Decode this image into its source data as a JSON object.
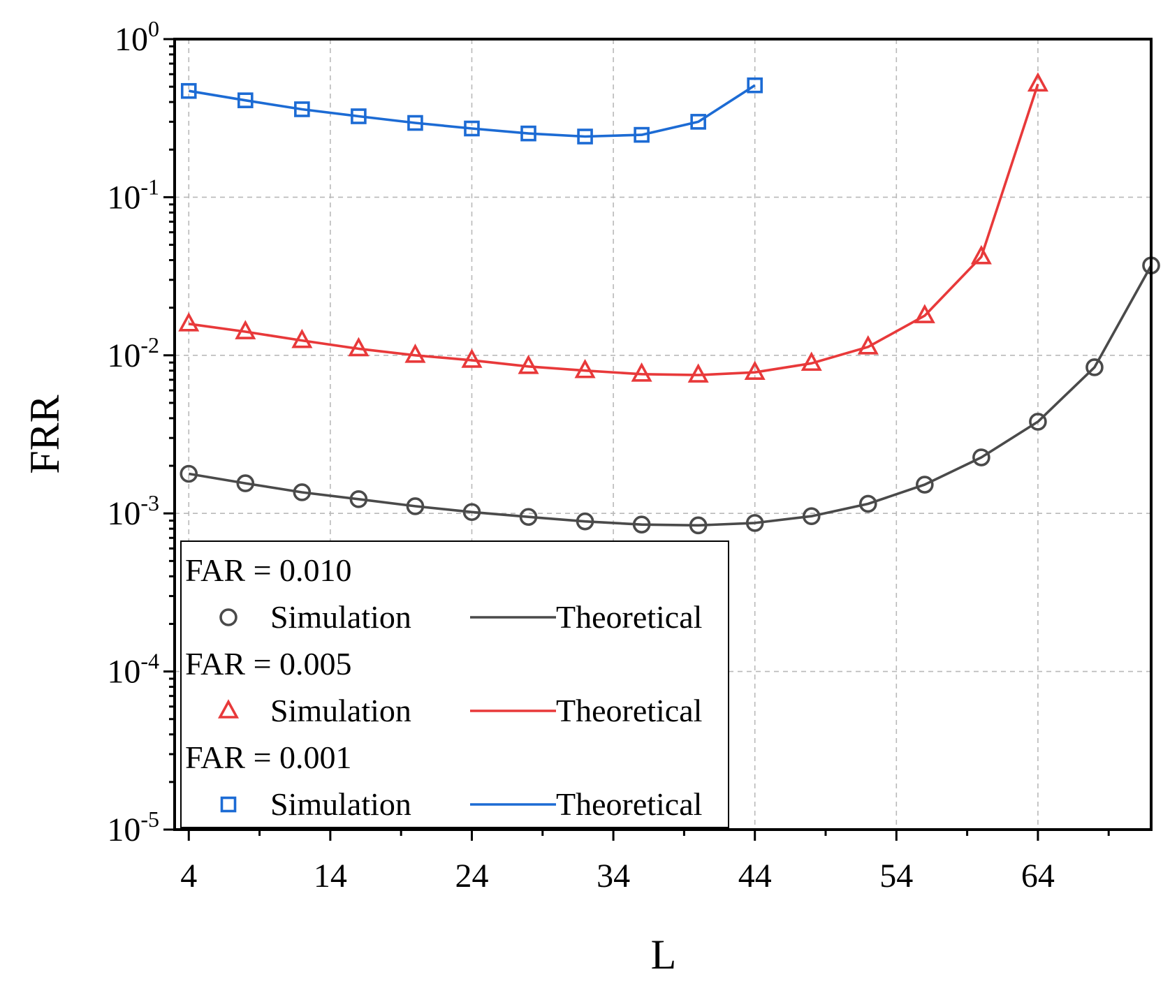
{
  "chart_data": {
    "type": "line",
    "title": "",
    "xlabel": "L",
    "ylabel": "FRR",
    "xlim": [
      3,
      72
    ],
    "ylim": [
      1e-05,
      1
    ],
    "yscale": "log",
    "grid": true,
    "x_ticks": [
      {
        "value": 4,
        "label": "4"
      },
      {
        "value": 14,
        "label": "14"
      },
      {
        "value": 24,
        "label": "24"
      },
      {
        "value": 34,
        "label": "34"
      },
      {
        "value": 44,
        "label": "44"
      },
      {
        "value": 54,
        "label": "54"
      },
      {
        "value": 64,
        "label": "64"
      }
    ],
    "x_minor_ticks": [
      9,
      19,
      29,
      39,
      49,
      59,
      69
    ],
    "y_ticks": [
      {
        "value": 1,
        "base": "10",
        "exp": "0"
      },
      {
        "value": 0.1,
        "base": "10",
        "exp": "-1"
      },
      {
        "value": 0.01,
        "base": "10",
        "exp": "-2"
      },
      {
        "value": 0.001,
        "base": "10",
        "exp": "-3"
      },
      {
        "value": 0.0001,
        "base": "10",
        "exp": "-4"
      },
      {
        "value": 1e-05,
        "base": "10",
        "exp": "-5"
      }
    ],
    "legend": {
      "position": "bottom-left",
      "groups": [
        {
          "heading": "FAR = 0.010",
          "sim_label": "Simulation",
          "theory_label": "Theoretical",
          "series": 0
        },
        {
          "heading": "FAR = 0.005",
          "sim_label": "Simulation",
          "theory_label": "Theoretical",
          "series": 1
        },
        {
          "heading": "FAR = 0.001",
          "sim_label": "Simulation",
          "theory_label": "Theoretical",
          "series": 2
        }
      ]
    },
    "series": [
      {
        "name": "FAR = 0.010",
        "color": "#4a4a4a",
        "marker": "circle",
        "x": [
          4,
          8,
          12,
          16,
          20,
          24,
          28,
          32,
          36,
          40,
          44,
          48,
          52,
          56,
          60,
          64,
          68,
          72
        ],
        "simulation": [
          0.00178,
          0.00155,
          0.00136,
          0.00123,
          0.00111,
          0.00102,
          0.00095,
          0.00089,
          0.00085,
          0.00084,
          0.00087,
          0.00096,
          0.00115,
          0.00152,
          0.00226,
          0.0038,
          0.0084,
          0.037
        ],
        "theoretical": [
          0.00178,
          0.00155,
          0.00136,
          0.00123,
          0.00111,
          0.00102,
          0.00095,
          0.00089,
          0.00085,
          0.00084,
          0.00087,
          0.00096,
          0.00115,
          0.00152,
          0.00226,
          0.0038,
          0.0084,
          0.037
        ]
      },
      {
        "name": "FAR = 0.005",
        "color": "#e8393a",
        "marker": "triangle",
        "x": [
          4,
          8,
          12,
          16,
          20,
          24,
          28,
          32,
          36,
          40,
          44,
          48,
          52,
          56,
          60,
          64
        ],
        "simulation": [
          0.0158,
          0.0141,
          0.0124,
          0.011,
          0.01,
          0.0093,
          0.0085,
          0.008,
          0.0076,
          0.0075,
          0.0078,
          0.0089,
          0.0113,
          0.0178,
          0.042,
          0.52
        ],
        "theoretical": [
          0.0158,
          0.0141,
          0.0124,
          0.011,
          0.01,
          0.0093,
          0.0085,
          0.008,
          0.0076,
          0.0075,
          0.0078,
          0.0089,
          0.0113,
          0.0178,
          0.042,
          0.52
        ]
      },
      {
        "name": "FAR = 0.001",
        "color": "#1c6bd4",
        "marker": "square",
        "x": [
          4,
          8,
          12,
          16,
          20,
          24,
          28,
          32,
          36,
          40,
          44
        ],
        "simulation": [
          0.47,
          0.41,
          0.36,
          0.325,
          0.295,
          0.272,
          0.253,
          0.242,
          0.248,
          0.3,
          0.51
        ],
        "theoretical": [
          0.47,
          0.41,
          0.36,
          0.325,
          0.295,
          0.272,
          0.253,
          0.242,
          0.248,
          0.3,
          0.51
        ]
      }
    ]
  }
}
